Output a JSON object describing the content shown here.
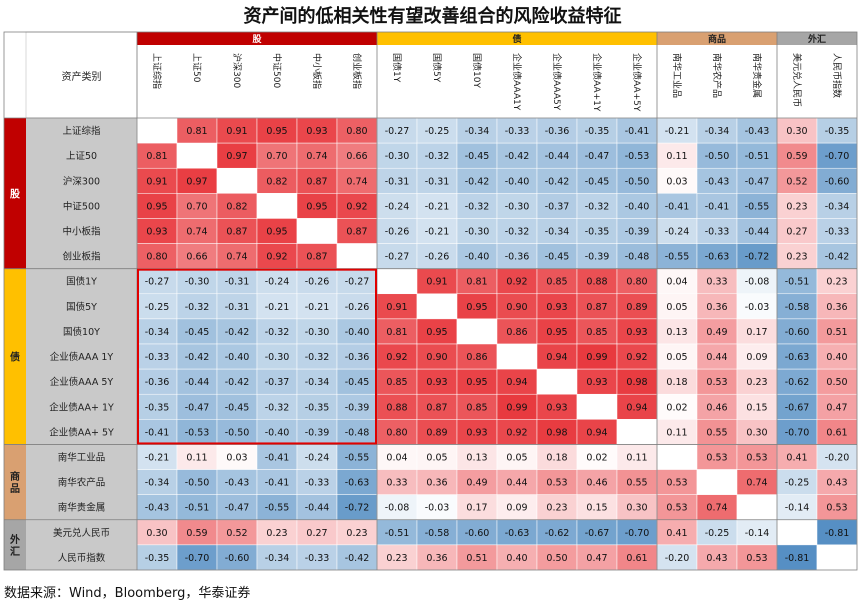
{
  "title": "资产间的低相关性有望改善组合的风险收益特征",
  "source": "数据来源：Wind，Bloomberg，华泰证券",
  "colors": {
    "group_stock": "#c00000",
    "group_bond": "#ffc000",
    "group_commodity": "#d9a071",
    "group_fx": "#a6a6a6",
    "positive": "#e8383d",
    "negative": "#2e75b6",
    "header_bg": "#c9c9c9",
    "highlight": "#e00000"
  },
  "chart_data": {
    "type": "heatmap",
    "title": "资产间的低相关性有望改善组合的风险收益特征",
    "corner_label": "资产类别",
    "groups": [
      {
        "name": "股",
        "start": 0,
        "count": 6
      },
      {
        "name": "债",
        "start": 6,
        "count": 7
      },
      {
        "name": "商品",
        "start": 13,
        "count": 3
      },
      {
        "name": "外汇",
        "start": 16,
        "count": 2
      }
    ],
    "labels": [
      "上证综指",
      "上证50",
      "沪深300",
      "中证500",
      "中小板指",
      "创业板指",
      "国债1Y",
      "国债5Y",
      "国债10Y",
      "企业债AAA 1Y",
      "企业债AAA 5Y",
      "企业债AA+ 1Y",
      "企业债AA+ 5Y",
      "南华工业品",
      "南华农产品",
      "南华贵金属",
      "美元兑人民币",
      "人民币指数"
    ],
    "col_labels": [
      "上证综指",
      "上证50",
      "沪深300",
      "中证500",
      "中小板指",
      "创业板指",
      "国债1Y",
      "国债5Y",
      "国债10Y",
      "企业债AAA1Y",
      "企业债AAA5Y",
      "企业债AA+1Y",
      "企业债AA+5Y",
      "南华工业品",
      "南华农产品",
      "南华贵金属",
      "美元兑人民币",
      "人民币指数"
    ],
    "values": [
      [
        null,
        0.81,
        0.91,
        0.95,
        0.93,
        0.8,
        -0.27,
        -0.25,
        -0.34,
        -0.33,
        -0.36,
        -0.35,
        -0.41,
        -0.21,
        -0.34,
        -0.43,
        0.3,
        -0.35
      ],
      [
        0.81,
        null,
        0.97,
        0.7,
        0.74,
        0.66,
        -0.3,
        -0.32,
        -0.45,
        -0.42,
        -0.44,
        -0.47,
        -0.53,
        0.11,
        -0.5,
        -0.51,
        0.59,
        -0.7
      ],
      [
        0.91,
        0.97,
        null,
        0.82,
        0.87,
        0.74,
        -0.31,
        -0.31,
        -0.42,
        -0.4,
        -0.42,
        -0.45,
        -0.5,
        0.03,
        -0.43,
        -0.47,
        0.52,
        -0.6
      ],
      [
        0.95,
        0.7,
        0.82,
        null,
        0.95,
        0.92,
        -0.24,
        -0.21,
        -0.32,
        -0.3,
        -0.37,
        -0.32,
        -0.4,
        -0.41,
        -0.41,
        -0.55,
        0.23,
        -0.34
      ],
      [
        0.93,
        0.74,
        0.87,
        0.95,
        null,
        0.87,
        -0.26,
        -0.21,
        -0.3,
        -0.32,
        -0.34,
        -0.35,
        -0.39,
        -0.24,
        -0.33,
        -0.44,
        0.27,
        -0.33
      ],
      [
        0.8,
        0.66,
        0.74,
        0.92,
        0.87,
        null,
        -0.27,
        -0.26,
        -0.4,
        -0.36,
        -0.45,
        -0.39,
        -0.48,
        -0.55,
        -0.63,
        -0.72,
        0.23,
        -0.42
      ],
      [
        -0.27,
        -0.3,
        -0.31,
        -0.24,
        -0.26,
        -0.27,
        null,
        0.91,
        0.81,
        0.92,
        0.85,
        0.88,
        0.8,
        0.04,
        0.33,
        -0.08,
        -0.51,
        0.23
      ],
      [
        -0.25,
        -0.32,
        -0.31,
        -0.21,
        -0.21,
        -0.26,
        0.91,
        null,
        0.95,
        0.9,
        0.93,
        0.87,
        0.89,
        0.05,
        0.36,
        -0.03,
        -0.58,
        0.36
      ],
      [
        -0.34,
        -0.45,
        -0.42,
        -0.32,
        -0.3,
        -0.4,
        0.81,
        0.95,
        null,
        0.86,
        0.95,
        0.85,
        0.93,
        0.13,
        0.49,
        0.17,
        -0.6,
        0.51
      ],
      [
        -0.33,
        -0.42,
        -0.4,
        -0.3,
        -0.32,
        -0.36,
        0.92,
        0.9,
        0.86,
        null,
        0.94,
        0.99,
        0.92,
        0.05,
        0.44,
        0.09,
        -0.63,
        0.4
      ],
      [
        -0.36,
        -0.44,
        -0.42,
        -0.37,
        -0.34,
        -0.45,
        0.85,
        0.93,
        0.95,
        0.94,
        null,
        0.93,
        0.98,
        0.18,
        0.53,
        0.23,
        -0.62,
        0.5
      ],
      [
        -0.35,
        -0.47,
        -0.45,
        -0.32,
        -0.35,
        -0.39,
        0.88,
        0.87,
        0.85,
        0.99,
        0.93,
        null,
        0.94,
        0.02,
        0.46,
        0.15,
        -0.67,
        0.47
      ],
      [
        -0.41,
        -0.53,
        -0.5,
        -0.4,
        -0.39,
        -0.48,
        0.8,
        0.89,
        0.93,
        0.92,
        0.98,
        0.94,
        null,
        0.11,
        0.55,
        0.3,
        -0.7,
        0.61
      ],
      [
        -0.21,
        0.11,
        0.03,
        -0.41,
        -0.24,
        -0.55,
        0.04,
        0.05,
        0.13,
        0.05,
        0.18,
        0.02,
        0.11,
        null,
        0.53,
        0.53,
        0.41,
        -0.2
      ],
      [
        -0.34,
        -0.5,
        -0.43,
        -0.41,
        -0.33,
        -0.63,
        0.33,
        0.36,
        0.49,
        0.44,
        0.53,
        0.46,
        0.55,
        0.53,
        null,
        0.74,
        -0.25,
        0.43
      ],
      [
        -0.43,
        -0.51,
        -0.47,
        -0.55,
        -0.44,
        -0.72,
        -0.08,
        -0.03,
        0.17,
        0.09,
        0.23,
        0.15,
        0.3,
        0.53,
        0.74,
        null,
        -0.14,
        0.53
      ],
      [
        0.3,
        0.59,
        0.52,
        0.23,
        0.27,
        0.23,
        -0.51,
        -0.58,
        -0.6,
        -0.63,
        -0.62,
        -0.67,
        -0.7,
        0.41,
        -0.25,
        -0.14,
        null,
        -0.81
      ],
      [
        -0.35,
        -0.7,
        -0.6,
        -0.34,
        -0.33,
        -0.42,
        0.23,
        0.36,
        0.51,
        0.4,
        0.5,
        0.47,
        0.61,
        -0.2,
        0.43,
        0.53,
        -0.81,
        null
      ]
    ],
    "vmin": -1,
    "vmax": 1,
    "highlight_region": {
      "rows": [
        6,
        12
      ],
      "cols": [
        0,
        5
      ]
    },
    "legend": "none",
    "grid": true
  }
}
